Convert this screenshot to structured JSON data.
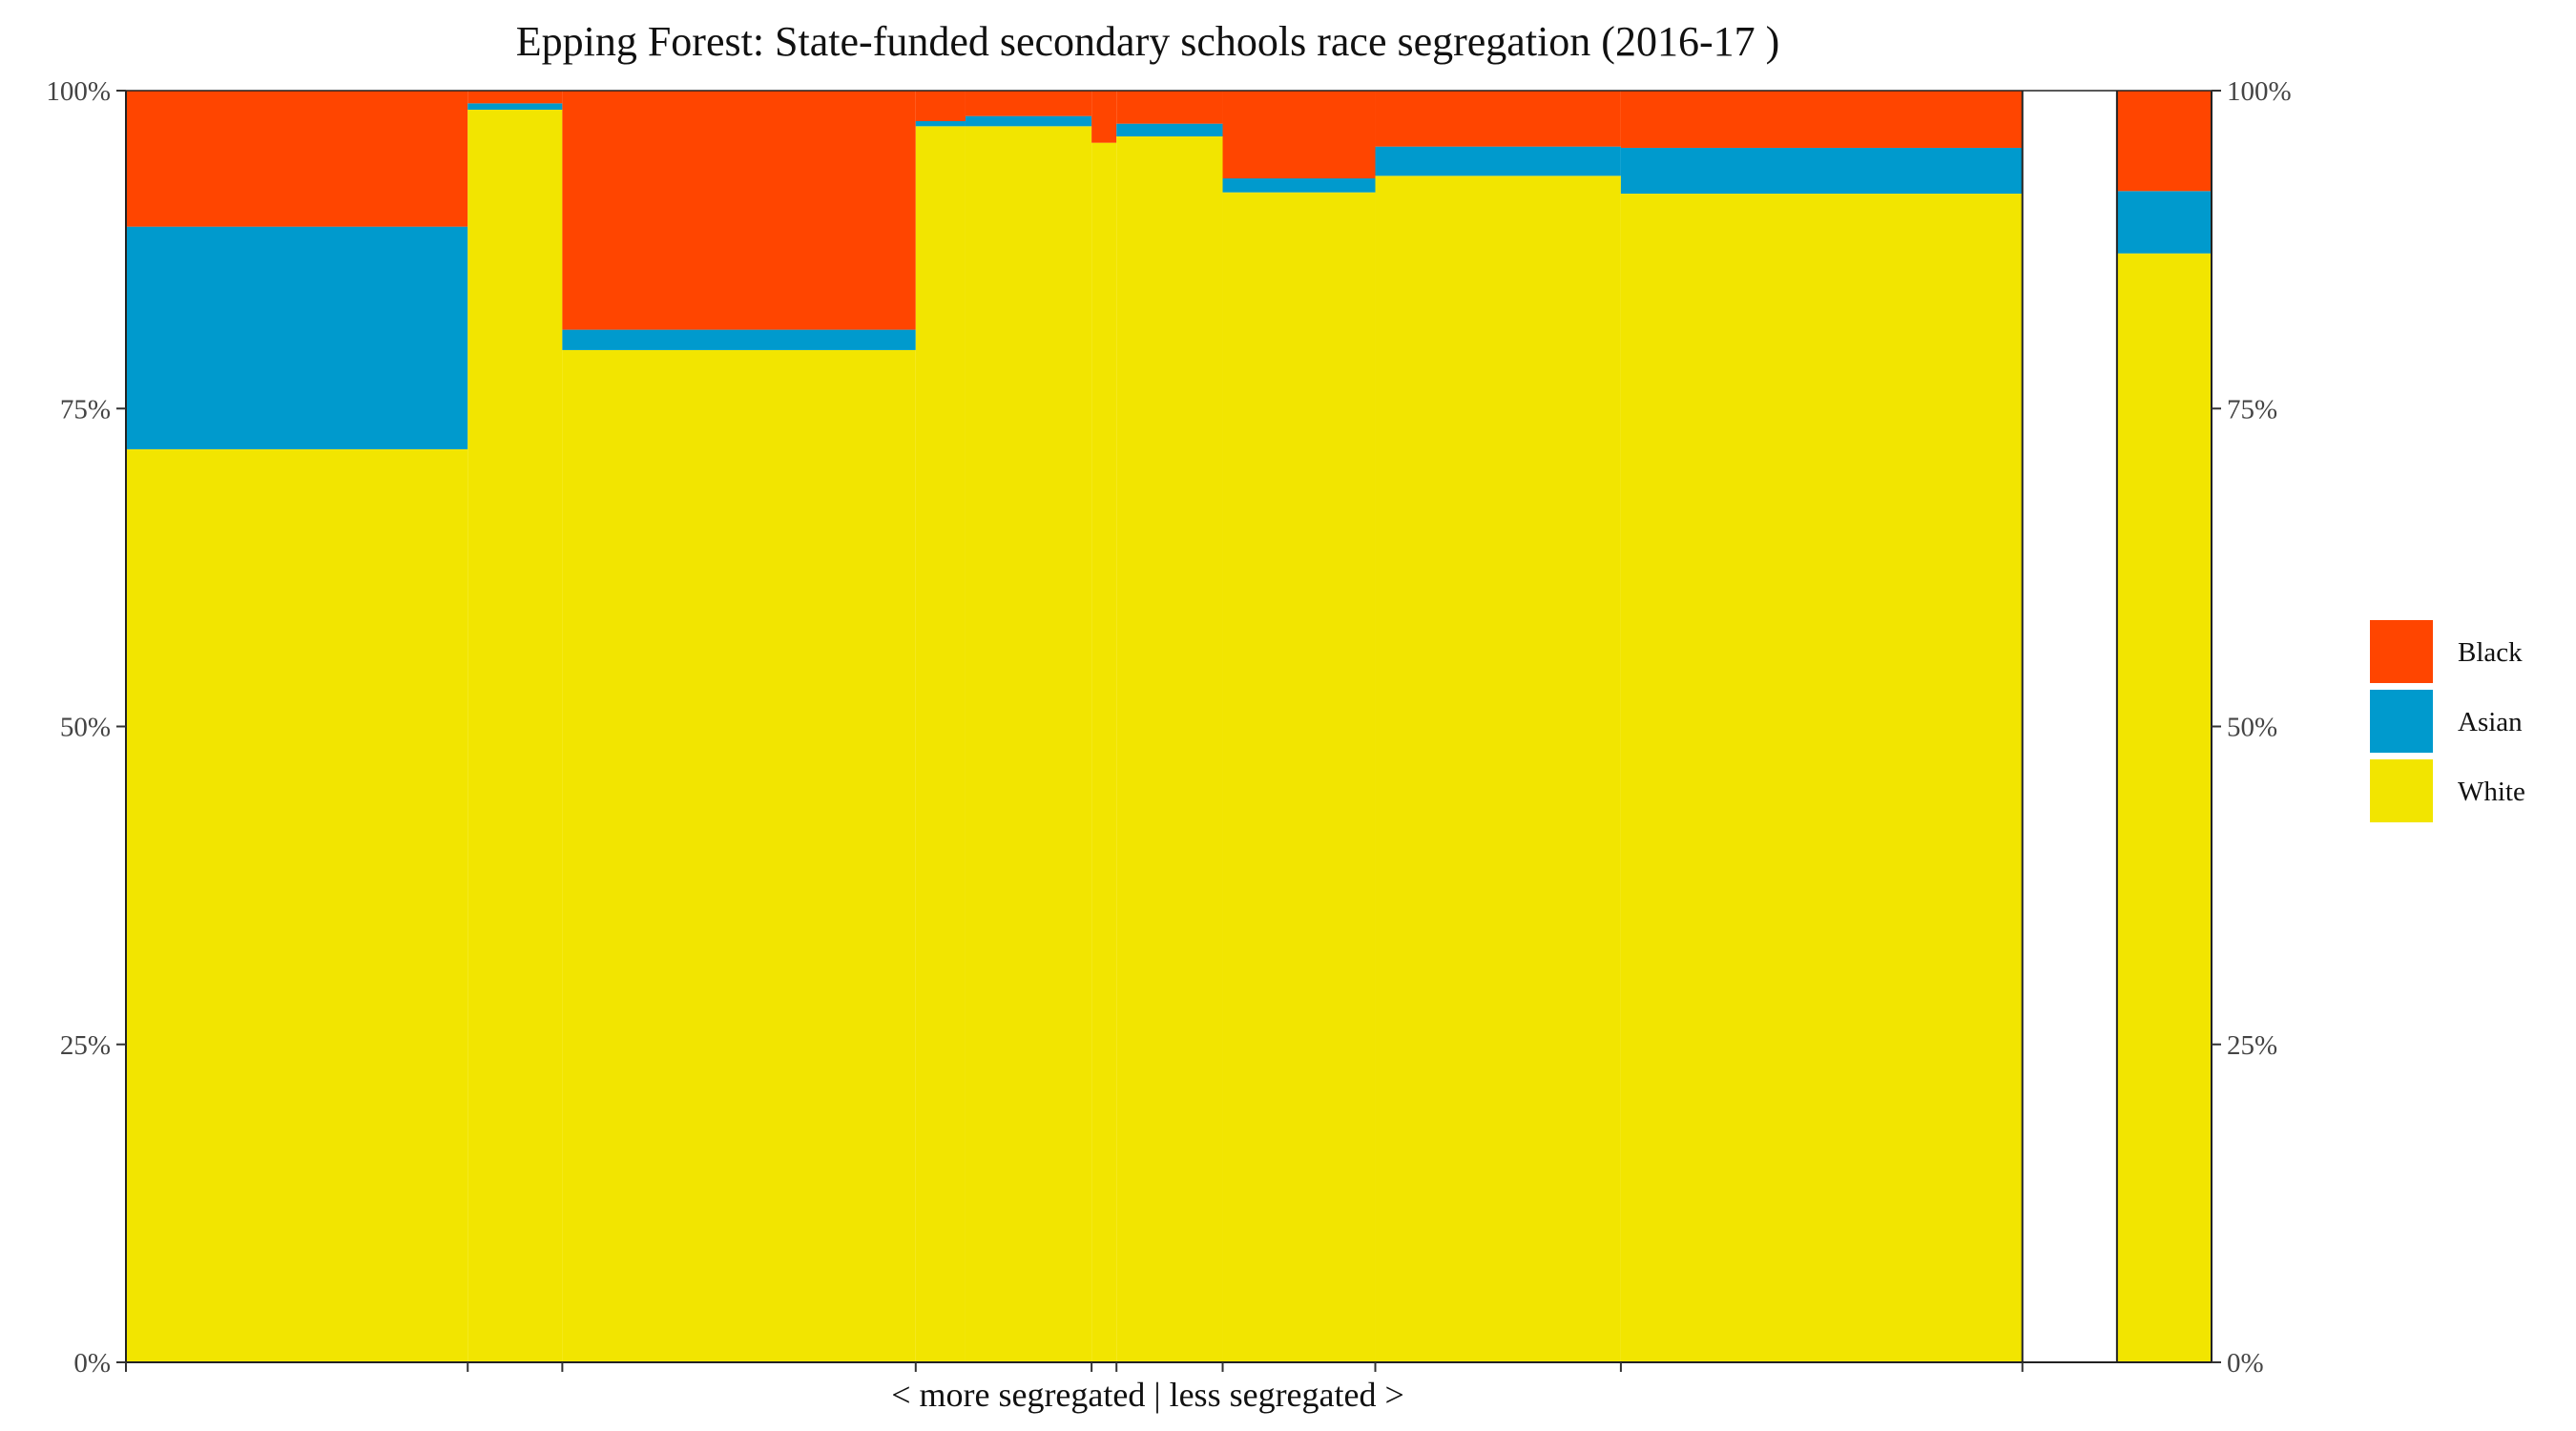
{
  "chart_data": {
    "type": "bar",
    "title": "Epping Forest: State-funded secondary schools race segregation (2016-17 )",
    "xlabel": "< more segregated | less segregated >",
    "ylabel": "",
    "ylim": [
      0,
      1
    ],
    "y_ticks": [
      "0%",
      "25%",
      "50%",
      "75%",
      "100%"
    ],
    "x_range": [
      0,
      1257
    ],
    "legend_position": "right",
    "grid": false,
    "series_colors": {
      "Black": "#FF4500",
      "Asian": "#009ACD",
      "White": "#F2E500"
    },
    "legend": [
      "Black",
      "Asian",
      "White"
    ],
    "schools": [
      {
        "x_start": 0,
        "x_end": 206,
        "White": 0.718,
        "Asian": 0.175,
        "Black": 0.107
      },
      {
        "x_start": 206,
        "x_end": 263,
        "White": 0.985,
        "Asian": 0.005,
        "Black": 0.01
      },
      {
        "x_start": 263,
        "x_end": 476,
        "White": 0.796,
        "Asian": 0.016,
        "Black": 0.188
      },
      {
        "x_start": 476,
        "x_end": 506,
        "White": 0.972,
        "Asian": 0.004,
        "Black": 0.024
      },
      {
        "x_start": 506,
        "x_end": 582,
        "White": 0.972,
        "Asian": 0.008,
        "Black": 0.02
      },
      {
        "x_start": 582,
        "x_end": 597,
        "White": 0.959,
        "Asian": 0.0,
        "Black": 0.041
      },
      {
        "x_start": 597,
        "x_end": 661,
        "White": 0.964,
        "Asian": 0.01,
        "Black": 0.026
      },
      {
        "x_start": 661,
        "x_end": 753,
        "White": 0.92,
        "Asian": 0.011,
        "Black": 0.069
      },
      {
        "x_start": 753,
        "x_end": 901,
        "White": 0.933,
        "Asian": 0.023,
        "Black": 0.044
      },
      {
        "x_start": 901,
        "x_end": 1143,
        "White": 0.919,
        "Asian": 0.036,
        "Black": 0.045
      },
      {
        "x_start": 1200,
        "x_end": 1257,
        "White": 0.872,
        "Asian": 0.049,
        "Black": 0.079
      }
    ],
    "x_ticks": [
      0,
      206,
      263,
      476,
      582,
      597,
      661,
      753,
      901,
      1143
    ]
  }
}
